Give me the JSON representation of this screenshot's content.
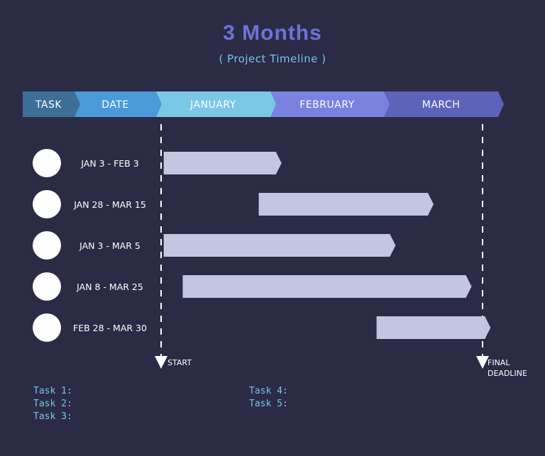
{
  "title": "3 Months",
  "subtitle": "( Project Timeline )",
  "header": {
    "task_label": "TASK",
    "date_label": "DATE",
    "months": [
      "JANUARY",
      "FEBRUARY",
      "MARCH"
    ]
  },
  "markers": {
    "start": "START",
    "final_line1": "FINAL",
    "final_line2": "DEADLINE"
  },
  "task_labels_left": [
    "Task 1:",
    "Task 2:",
    "Task 3:"
  ],
  "task_labels_right": [
    "Task 4:",
    "Task 5:"
  ],
  "colors": {
    "background": "#2b2b45",
    "task_header": "#3d6f98",
    "date_header": "#4a9ad8",
    "january": "#7ac8e6",
    "february": "#7a82e0",
    "march": "#5d63b8",
    "bar": "#c2c6e0",
    "circle": "#ffffff"
  },
  "chart_data": {
    "type": "bar",
    "orientation": "gantt",
    "x_range_months": [
      "JANUARY",
      "FEBRUARY",
      "MARCH"
    ],
    "xlim": [
      1,
      91
    ],
    "tasks": [
      {
        "date_label": "JAN 3 - FEB 3",
        "start_day": 3,
        "end_day": 34
      },
      {
        "date_label": "JAN 28 - MAR 15",
        "start_day": 28,
        "end_day": 74
      },
      {
        "date_label": "JAN 3 - MAR 5",
        "start_day": 3,
        "end_day": 64
      },
      {
        "date_label": "JAN 8 - MAR 25",
        "start_day": 8,
        "end_day": 84
      },
      {
        "date_label": "FEB 28 - MAR 30",
        "start_day": 59,
        "end_day": 89
      }
    ]
  }
}
